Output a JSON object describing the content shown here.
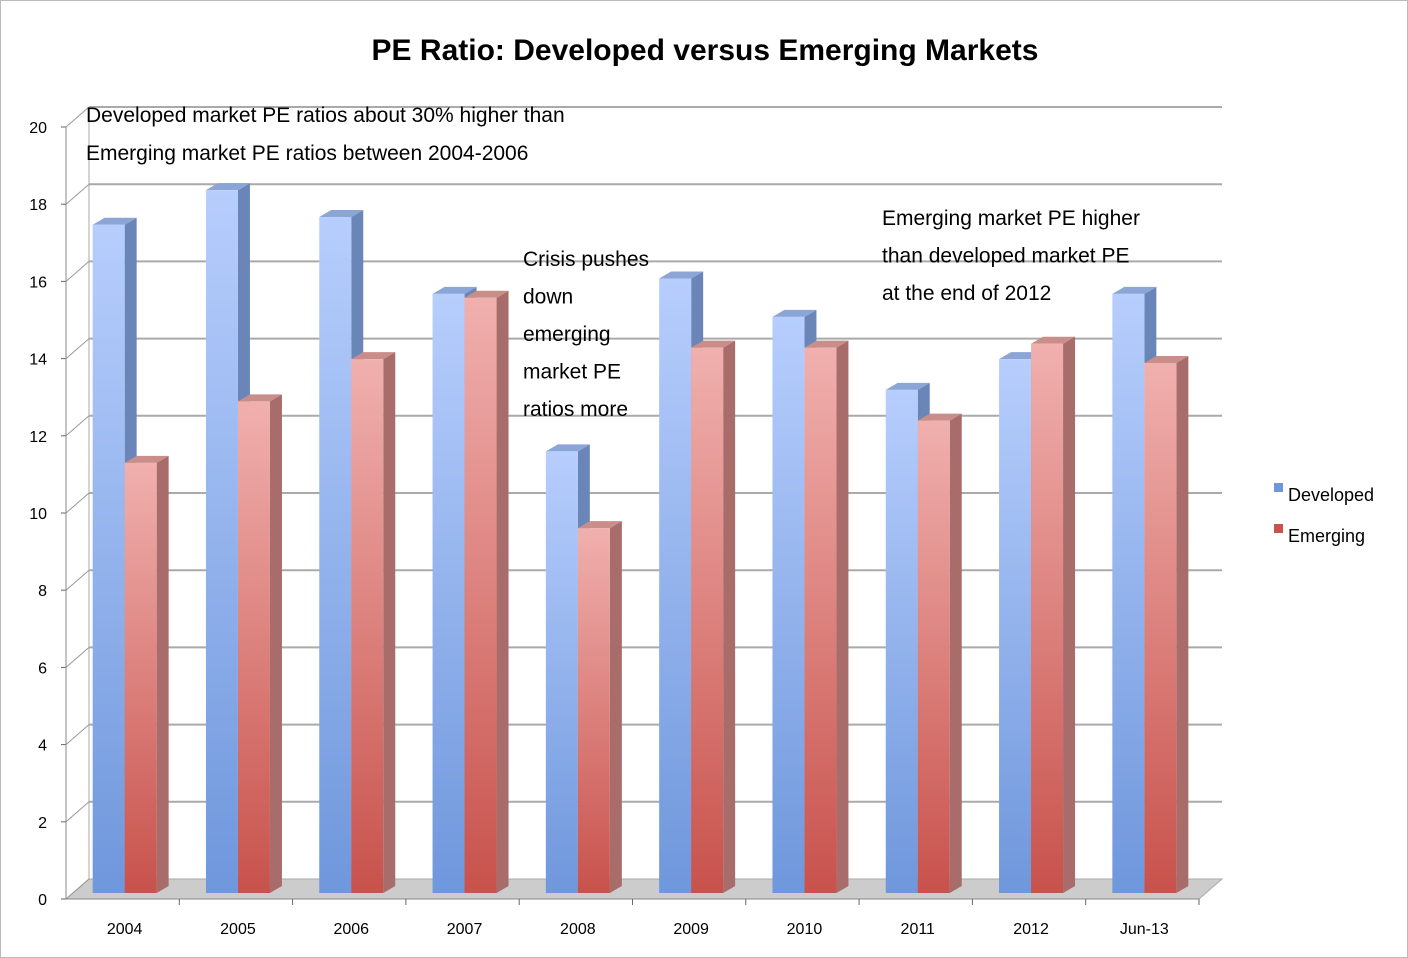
{
  "chart_data": {
    "type": "bar",
    "style": "3d-clustered-column",
    "title": "PE Ratio: Developed versus Emerging Markets",
    "xlabel": "",
    "ylabel": "",
    "ylim": [
      0,
      20
    ],
    "yticks": [
      0,
      2,
      4,
      6,
      8,
      10,
      12,
      14,
      16,
      18,
      20
    ],
    "grid": true,
    "legend_position": "right",
    "categories": [
      "2004",
      "2005",
      "2006",
      "2007",
      "2008",
      "2009",
      "2010",
      "2011",
      "2012",
      "Jun-13"
    ],
    "series": [
      {
        "name": "Developed",
        "color": "#8fb0ea",
        "values": [
          17.4,
          18.3,
          17.6,
          15.6,
          11.5,
          16.0,
          15.0,
          13.1,
          13.9,
          15.6
        ]
      },
      {
        "name": "Emerging",
        "color": "#d9807c",
        "values": [
          11.2,
          12.8,
          13.9,
          15.5,
          9.5,
          14.2,
          14.2,
          12.3,
          14.3,
          13.8
        ]
      }
    ],
    "annotations": [
      [
        "Developed market PE ratios about 30% higher than",
        "Emerging market PE ratios between 2004-2006"
      ],
      [
        "Crisis pushes",
        "down",
        "emerging",
        "market PE",
        "ratios more"
      ],
      [
        "Emerging market PE higher",
        "than developed market PE",
        "at the end of 2012"
      ]
    ]
  }
}
